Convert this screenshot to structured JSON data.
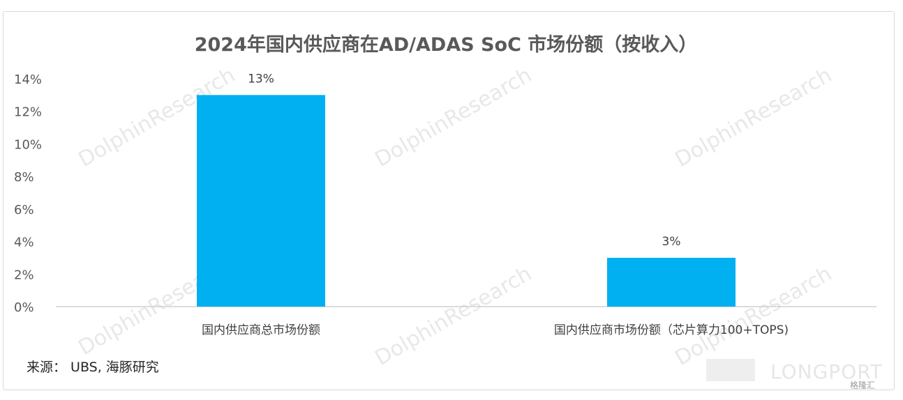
{
  "chart_data": {
    "type": "bar",
    "title": "2024年国内供应商在AD/ADAS SoC 市场份额（按收入）",
    "categories": [
      "国内供应商总市场份额",
      "国内供应商市场份额（芯片算力100+TOPS)"
    ],
    "values": [
      13,
      3
    ],
    "data_labels": [
      "13%",
      "3%"
    ],
    "ylim": [
      0,
      14
    ],
    "yticks": [
      "0%",
      "2%",
      "4%",
      "6%",
      "8%",
      "10%",
      "12%",
      "14%"
    ],
    "bar_color": "#00b0f0",
    "grid": false
  },
  "source": "来源： UBS, 海豚研究",
  "watermark": "DolphinResearch",
  "brand_logo": "LONGPORT",
  "corner_mark": "格隆汇"
}
